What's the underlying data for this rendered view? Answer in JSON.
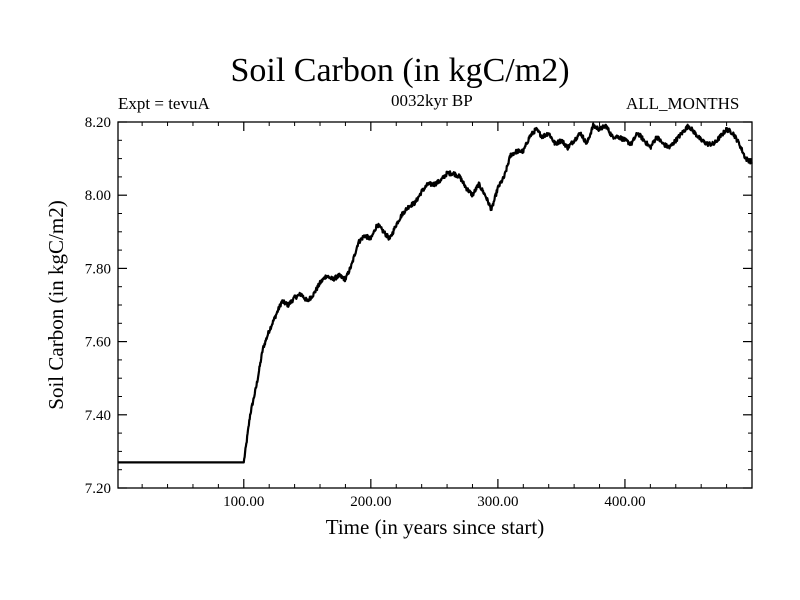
{
  "chart_data": {
    "type": "line",
    "title": "Soil Carbon (in kgC/m2)",
    "left_label": "Expt = tevuA",
    "center_label": "0032kyr BP",
    "right_label": "ALL_MONTHS",
    "xlabel": "Time (in years since start)",
    "ylabel": "Soil Carbon (in kgC/m2)",
    "xlim": [
      1,
      500
    ],
    "ylim": [
      7.2,
      8.2
    ],
    "x_ticks": [
      100,
      200,
      300,
      400
    ],
    "x_tick_labels": [
      "100.00",
      "200.00",
      "300.00",
      "400.00"
    ],
    "y_ticks": [
      7.2,
      7.4,
      7.6,
      7.8,
      8.0,
      8.2
    ],
    "y_tick_labels": [
      "7.20",
      "7.40",
      "7.60",
      "7.80",
      "8.00",
      "8.20"
    ],
    "series": [
      {
        "name": "Soil Carbon",
        "x": [
          1,
          99,
          100,
          102,
          105,
          110,
          115,
          120,
          125,
          130,
          135,
          140,
          145,
          150,
          155,
          160,
          165,
          170,
          175,
          180,
          185,
          190,
          195,
          200,
          205,
          210,
          215,
          220,
          225,
          230,
          235,
          240,
          245,
          250,
          255,
          260,
          265,
          270,
          275,
          280,
          285,
          290,
          295,
          300,
          305,
          310,
          315,
          320,
          325,
          330,
          335,
          340,
          345,
          350,
          355,
          360,
          365,
          370,
          375,
          380,
          385,
          390,
          395,
          400,
          405,
          410,
          415,
          420,
          425,
          430,
          435,
          440,
          445,
          450,
          455,
          460,
          465,
          470,
          475,
          480,
          485,
          490,
          495,
          500
        ],
        "values": [
          7.27,
          7.27,
          7.27,
          7.32,
          7.4,
          7.48,
          7.58,
          7.63,
          7.67,
          7.71,
          7.7,
          7.72,
          7.73,
          7.71,
          7.73,
          7.76,
          7.78,
          7.77,
          7.78,
          7.77,
          7.81,
          7.87,
          7.89,
          7.88,
          7.92,
          7.9,
          7.88,
          7.92,
          7.95,
          7.97,
          7.98,
          8.01,
          8.03,
          8.03,
          8.04,
          8.06,
          8.06,
          8.05,
          8.02,
          8.0,
          8.03,
          8.0,
          7.96,
          8.02,
          8.05,
          8.11,
          8.12,
          8.12,
          8.16,
          8.18,
          8.16,
          8.17,
          8.14,
          8.15,
          8.13,
          8.15,
          8.17,
          8.14,
          8.19,
          8.18,
          8.19,
          8.16,
          8.16,
          8.15,
          8.14,
          8.17,
          8.15,
          8.13,
          8.16,
          8.14,
          8.13,
          8.15,
          8.17,
          8.19,
          8.17,
          8.15,
          8.14,
          8.14,
          8.16,
          8.18,
          8.17,
          8.14,
          8.1,
          8.09
        ]
      }
    ]
  }
}
